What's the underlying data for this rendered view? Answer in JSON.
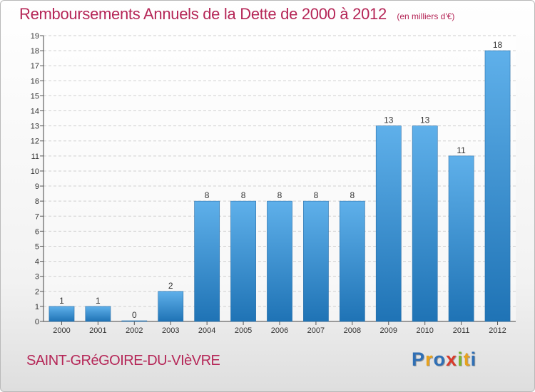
{
  "header": {
    "title": "Remboursements Annuels de la Dette de 2000 à 2012",
    "subtitle": "(en milliers d'€)"
  },
  "footer": {
    "commune": "SAINT-GRéGOIRE-DU-VIèVRE",
    "brand_letters": [
      {
        "ch": "P",
        "color": "#2f6fb5"
      },
      {
        "ch": "r",
        "color": "#e8a21c"
      },
      {
        "ch": "o",
        "color": "#2f6fb5"
      },
      {
        "ch": "x",
        "color": "#d93a2b"
      },
      {
        "ch": "i",
        "color": "#7bb62f"
      },
      {
        "ch": "t",
        "color": "#e8a21c"
      },
      {
        "ch": "i",
        "color": "#2f6fb5"
      }
    ]
  },
  "colors": {
    "bar_light": "#5fb0ea",
    "bar_dark": "#1f73b5",
    "title": "#b52657"
  },
  "chart_data": {
    "type": "bar",
    "categories": [
      "2000",
      "2001",
      "2002",
      "2003",
      "2004",
      "2005",
      "2006",
      "2007",
      "2008",
      "2009",
      "2010",
      "2011",
      "2012"
    ],
    "values": [
      1,
      1,
      0,
      2,
      8,
      8,
      8,
      8,
      8,
      13,
      13,
      11,
      18
    ],
    "title": "Remboursements Annuels de la Dette de 2000 à 2012",
    "xlabel": "",
    "ylabel": "",
    "ylim": [
      0,
      19
    ],
    "yticks": [
      0,
      1,
      2,
      3,
      4,
      5,
      6,
      7,
      8,
      9,
      10,
      11,
      12,
      13,
      14,
      15,
      16,
      17,
      18,
      19
    ],
    "grid": true
  }
}
